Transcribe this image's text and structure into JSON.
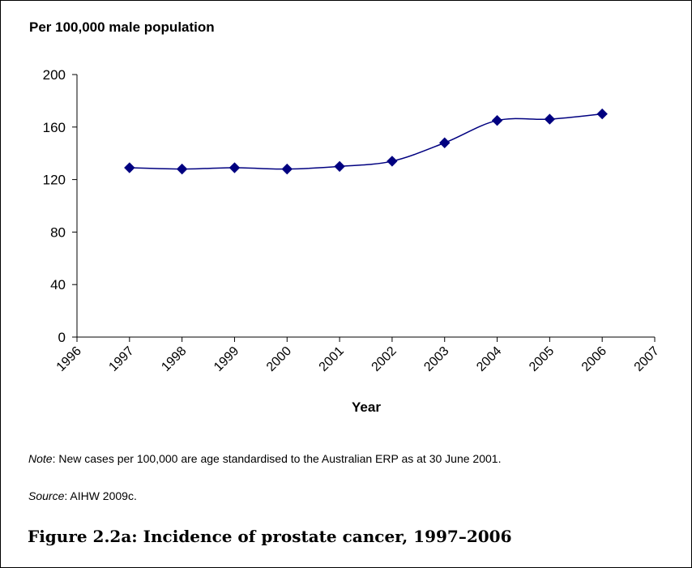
{
  "chart_data": {
    "type": "line",
    "ylabel": "Per 100,000 male population",
    "xlabel": "Year",
    "x": [
      1997,
      1998,
      1999,
      2000,
      2001,
      2002,
      2003,
      2004,
      2005,
      2006
    ],
    "series": [
      {
        "values": [
          129,
          128,
          129,
          128,
          130,
          134,
          148,
          165,
          166,
          170
        ]
      }
    ],
    "xlim": [
      1996,
      2007
    ],
    "ylim": [
      0,
      200
    ],
    "xticks": [
      1996,
      1997,
      1998,
      1999,
      2000,
      2001,
      2002,
      2003,
      2004,
      2005,
      2006,
      2007
    ],
    "yticks": [
      0,
      40,
      80,
      120,
      160,
      200
    ],
    "grid": false,
    "line_color": "#000080",
    "marker": "diamond"
  },
  "note": {
    "label": "Note",
    "text": ": New cases per 100,000 are age standardised to the Australian ERP as at 30 June 2001."
  },
  "source": {
    "label": "Source",
    "text": ": AIHW 2009c."
  },
  "caption": "Figure 2.2a: Incidence of prostate cancer, 1997–2006"
}
